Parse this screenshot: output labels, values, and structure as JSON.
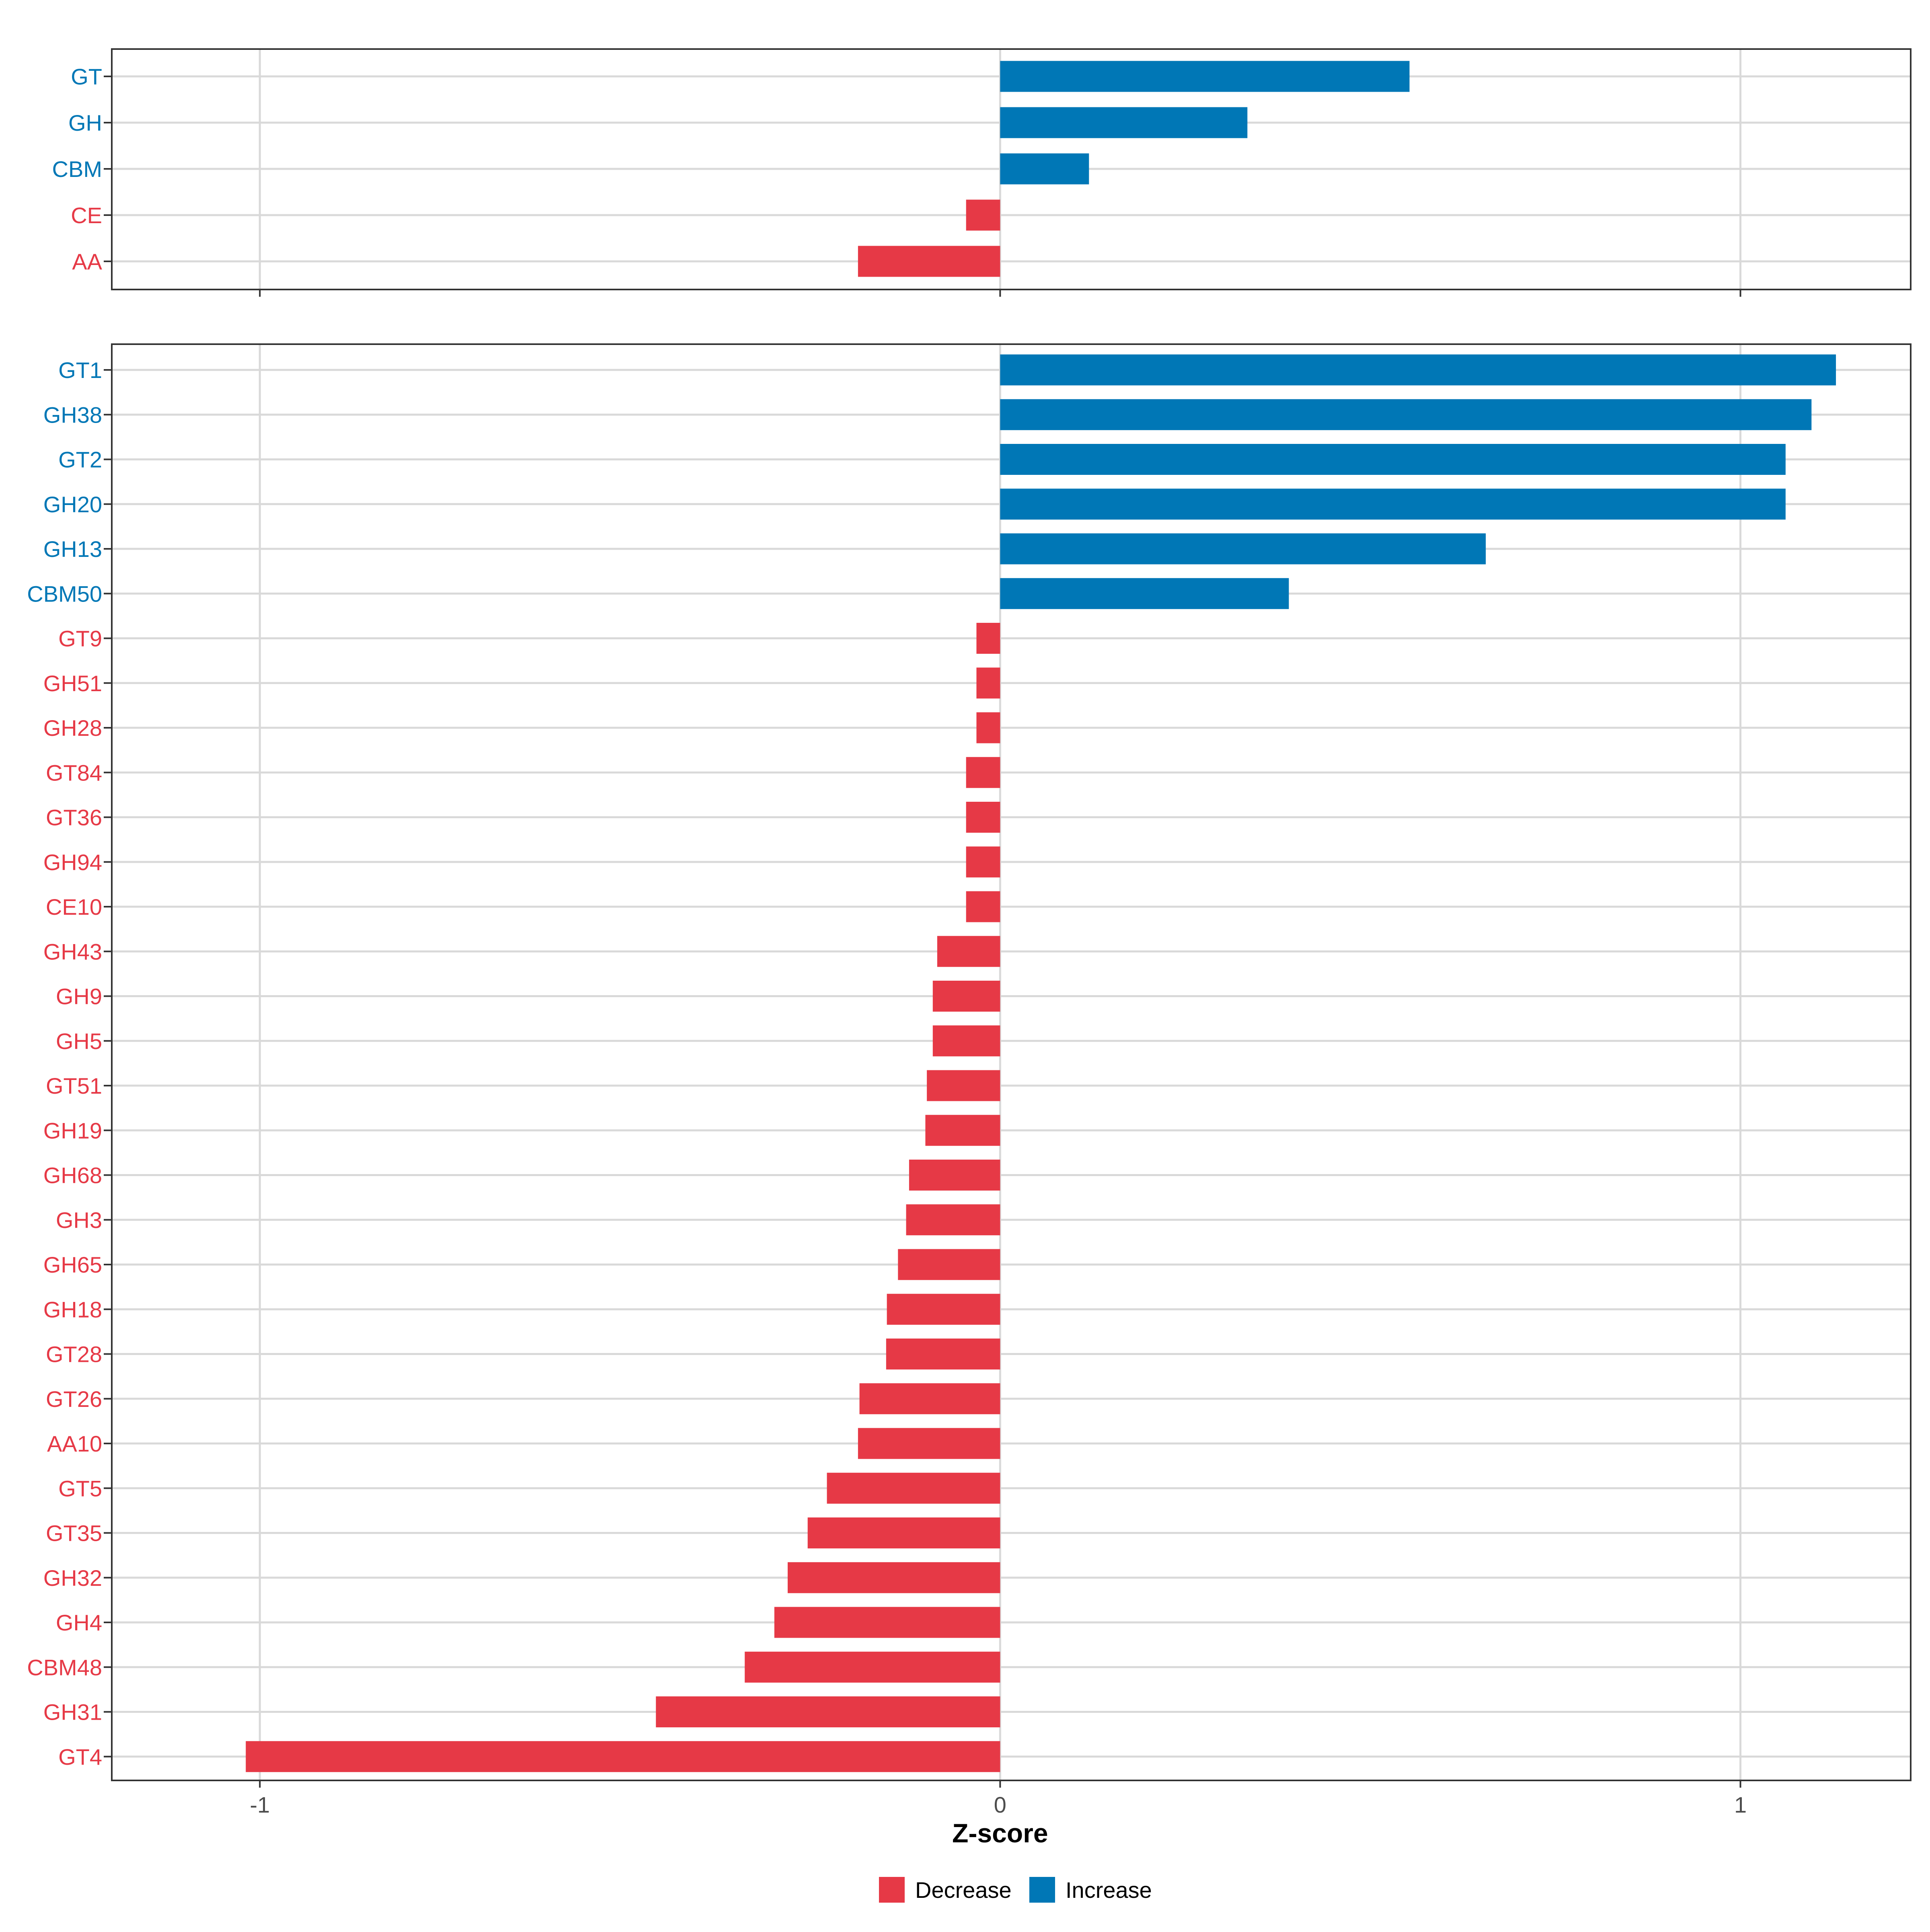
{
  "colors": {
    "decrease": "#E63946",
    "increase": "#0077B6",
    "grid": "#D9D9D9",
    "panel_border": "#333333"
  },
  "chart_data": [
    {
      "type": "bar",
      "orientation": "horizontal",
      "panel": "top",
      "categories": [
        "GT",
        "GH",
        "CBM",
        "CE",
        "AA"
      ],
      "values": [
        0.553,
        0.334,
        0.12,
        -0.046,
        -0.192
      ],
      "groups": [
        "Increase",
        "Increase",
        "Increase",
        "Decrease",
        "Decrease"
      ],
      "xlim": [
        -1.2,
        1.23
      ],
      "x_ticks": [
        -1,
        0,
        1
      ],
      "grid": true
    },
    {
      "type": "bar",
      "orientation": "horizontal",
      "panel": "bottom",
      "categories": [
        "GT1",
        "GH38",
        "GT2",
        "GH20",
        "GH13",
        "CBM50",
        "GT9",
        "GH51",
        "GH28",
        "GT84",
        "GT36",
        "GH94",
        "CE10",
        "GH43",
        "GH9",
        "GH5",
        "GT51",
        "GH19",
        "GH68",
        "GH3",
        "GH65",
        "GH18",
        "GT28",
        "GT26",
        "AA10",
        "GT5",
        "GT35",
        "GH32",
        "GH4",
        "CBM48",
        "GH31",
        "GT4"
      ],
      "values": [
        1.129,
        1.096,
        1.061,
        1.061,
        0.656,
        0.39,
        -0.032,
        -0.032,
        -0.032,
        -0.046,
        -0.046,
        -0.046,
        -0.046,
        -0.085,
        -0.091,
        -0.091,
        -0.099,
        -0.101,
        -0.123,
        -0.127,
        -0.138,
        -0.153,
        -0.154,
        -0.19,
        -0.192,
        -0.234,
        -0.26,
        -0.287,
        -0.305,
        -0.345,
        -0.465,
        -1.019
      ],
      "groups": [
        "Increase",
        "Increase",
        "Increase",
        "Increase",
        "Increase",
        "Increase",
        "Decrease",
        "Decrease",
        "Decrease",
        "Decrease",
        "Decrease",
        "Decrease",
        "Decrease",
        "Decrease",
        "Decrease",
        "Decrease",
        "Decrease",
        "Decrease",
        "Decrease",
        "Decrease",
        "Decrease",
        "Decrease",
        "Decrease",
        "Decrease",
        "Decrease",
        "Decrease",
        "Decrease",
        "Decrease",
        "Decrease",
        "Decrease",
        "Decrease",
        "Decrease"
      ],
      "xlim": [
        -1.2,
        1.23
      ],
      "x_ticks": [
        -1,
        0,
        1
      ],
      "x_tick_labels": [
        "-1",
        "0",
        "1"
      ],
      "xlabel": "Z-score",
      "grid": true
    }
  ],
  "legend": {
    "placement": "bottom",
    "items": [
      {
        "label": "Decrease",
        "group": "Decrease"
      },
      {
        "label": "Increase",
        "group": "Increase"
      }
    ]
  }
}
